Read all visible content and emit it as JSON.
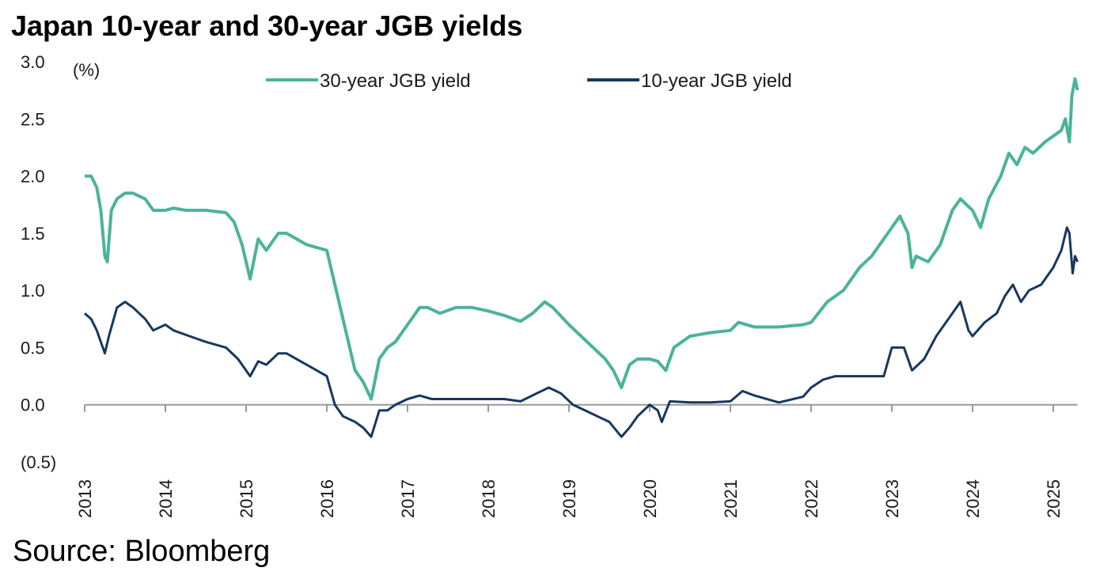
{
  "title": "Japan 10-year and 30-year JGB yields",
  "source": "Source: Bloomberg",
  "chart_data": {
    "type": "line",
    "title": "Japan 10-year and 30-year JGB yields",
    "unit_label": "(%)",
    "xlabel": "",
    "ylabel": "",
    "ylim": [
      -0.5,
      3.0
    ],
    "xlim": [
      2013.0,
      2025.3
    ],
    "y_ticks": [
      3.0,
      2.5,
      2.0,
      1.5,
      1.0,
      0.5,
      0.0,
      -0.5
    ],
    "y_tick_labels": [
      "3.0",
      "2.5",
      "2.0",
      "1.5",
      "1.0",
      "0.5",
      "0.0",
      "(0.5)"
    ],
    "x_tick_labels": [
      "2013",
      "2014",
      "2015",
      "2016",
      "2017",
      "2018",
      "2019",
      "2020",
      "2021",
      "2022",
      "2023",
      "2024",
      "2025"
    ],
    "grid": false,
    "legend_position": "top",
    "series": [
      {
        "name": "30-year JGB yield",
        "color": "#4bb39b",
        "points": [
          [
            2013.0,
            2.0
          ],
          [
            2013.08,
            2.0
          ],
          [
            2013.15,
            1.9
          ],
          [
            2013.2,
            1.7
          ],
          [
            2013.25,
            1.3
          ],
          [
            2013.28,
            1.25
          ],
          [
            2013.33,
            1.7
          ],
          [
            2013.4,
            1.8
          ],
          [
            2013.5,
            1.85
          ],
          [
            2013.6,
            1.85
          ],
          [
            2013.75,
            1.8
          ],
          [
            2013.85,
            1.7
          ],
          [
            2014.0,
            1.7
          ],
          [
            2014.1,
            1.72
          ],
          [
            2014.25,
            1.7
          ],
          [
            2014.5,
            1.7
          ],
          [
            2014.75,
            1.68
          ],
          [
            2014.85,
            1.6
          ],
          [
            2014.95,
            1.4
          ],
          [
            2015.05,
            1.1
          ],
          [
            2015.15,
            1.45
          ],
          [
            2015.25,
            1.35
          ],
          [
            2015.4,
            1.5
          ],
          [
            2015.5,
            1.5
          ],
          [
            2015.75,
            1.4
          ],
          [
            2016.0,
            1.35
          ],
          [
            2016.05,
            1.2
          ],
          [
            2016.15,
            0.9
          ],
          [
            2016.25,
            0.6
          ],
          [
            2016.35,
            0.3
          ],
          [
            2016.45,
            0.2
          ],
          [
            2016.55,
            0.05
          ],
          [
            2016.65,
            0.4
          ],
          [
            2016.75,
            0.5
          ],
          [
            2016.85,
            0.55
          ],
          [
            2017.0,
            0.7
          ],
          [
            2017.15,
            0.85
          ],
          [
            2017.25,
            0.85
          ],
          [
            2017.4,
            0.8
          ],
          [
            2017.6,
            0.85
          ],
          [
            2017.8,
            0.85
          ],
          [
            2018.0,
            0.82
          ],
          [
            2018.2,
            0.78
          ],
          [
            2018.4,
            0.73
          ],
          [
            2018.55,
            0.8
          ],
          [
            2018.7,
            0.9
          ],
          [
            2018.8,
            0.85
          ],
          [
            2019.0,
            0.7
          ],
          [
            2019.15,
            0.6
          ],
          [
            2019.3,
            0.5
          ],
          [
            2019.45,
            0.4
          ],
          [
            2019.55,
            0.3
          ],
          [
            2019.65,
            0.15
          ],
          [
            2019.75,
            0.35
          ],
          [
            2019.85,
            0.4
          ],
          [
            2020.0,
            0.4
          ],
          [
            2020.1,
            0.38
          ],
          [
            2020.2,
            0.3
          ],
          [
            2020.3,
            0.5
          ],
          [
            2020.5,
            0.6
          ],
          [
            2020.75,
            0.63
          ],
          [
            2021.0,
            0.65
          ],
          [
            2021.1,
            0.72
          ],
          [
            2021.3,
            0.68
          ],
          [
            2021.6,
            0.68
          ],
          [
            2021.9,
            0.7
          ],
          [
            2022.0,
            0.72
          ],
          [
            2022.2,
            0.9
          ],
          [
            2022.4,
            1.0
          ],
          [
            2022.6,
            1.2
          ],
          [
            2022.75,
            1.3
          ],
          [
            2022.9,
            1.45
          ],
          [
            2023.0,
            1.55
          ],
          [
            2023.1,
            1.65
          ],
          [
            2023.2,
            1.5
          ],
          [
            2023.25,
            1.2
          ],
          [
            2023.3,
            1.3
          ],
          [
            2023.45,
            1.25
          ],
          [
            2023.6,
            1.4
          ],
          [
            2023.75,
            1.7
          ],
          [
            2023.85,
            1.8
          ],
          [
            2024.0,
            1.7
          ],
          [
            2024.1,
            1.55
          ],
          [
            2024.2,
            1.8
          ],
          [
            2024.35,
            2.0
          ],
          [
            2024.45,
            2.2
          ],
          [
            2024.55,
            2.1
          ],
          [
            2024.65,
            2.25
          ],
          [
            2024.75,
            2.2
          ],
          [
            2024.9,
            2.3
          ],
          [
            2025.0,
            2.35
          ],
          [
            2025.1,
            2.4
          ],
          [
            2025.15,
            2.5
          ],
          [
            2025.2,
            2.3
          ],
          [
            2025.23,
            2.7
          ],
          [
            2025.27,
            2.85
          ],
          [
            2025.3,
            2.75
          ]
        ]
      },
      {
        "name": "10-year JGB yield",
        "color": "#17375e",
        "points": [
          [
            2013.0,
            0.8
          ],
          [
            2013.08,
            0.75
          ],
          [
            2013.15,
            0.65
          ],
          [
            2013.2,
            0.55
          ],
          [
            2013.25,
            0.45
          ],
          [
            2013.3,
            0.6
          ],
          [
            2013.4,
            0.85
          ],
          [
            2013.5,
            0.9
          ],
          [
            2013.6,
            0.85
          ],
          [
            2013.75,
            0.75
          ],
          [
            2013.85,
            0.65
          ],
          [
            2014.0,
            0.7
          ],
          [
            2014.1,
            0.65
          ],
          [
            2014.3,
            0.6
          ],
          [
            2014.5,
            0.55
          ],
          [
            2014.75,
            0.5
          ],
          [
            2014.9,
            0.4
          ],
          [
            2015.05,
            0.25
          ],
          [
            2015.15,
            0.38
          ],
          [
            2015.25,
            0.35
          ],
          [
            2015.4,
            0.45
          ],
          [
            2015.5,
            0.45
          ],
          [
            2015.75,
            0.35
          ],
          [
            2016.0,
            0.25
          ],
          [
            2016.1,
            0.0
          ],
          [
            2016.2,
            -0.1
          ],
          [
            2016.35,
            -0.15
          ],
          [
            2016.45,
            -0.2
          ],
          [
            2016.55,
            -0.28
          ],
          [
            2016.65,
            -0.05
          ],
          [
            2016.75,
            -0.05
          ],
          [
            2016.85,
            0.0
          ],
          [
            2017.0,
            0.05
          ],
          [
            2017.15,
            0.08
          ],
          [
            2017.3,
            0.05
          ],
          [
            2017.5,
            0.05
          ],
          [
            2017.75,
            0.05
          ],
          [
            2018.0,
            0.05
          ],
          [
            2018.2,
            0.05
          ],
          [
            2018.4,
            0.03
          ],
          [
            2018.6,
            0.1
          ],
          [
            2018.75,
            0.15
          ],
          [
            2018.9,
            0.1
          ],
          [
            2019.05,
            0.0
          ],
          [
            2019.2,
            -0.05
          ],
          [
            2019.35,
            -0.1
          ],
          [
            2019.5,
            -0.15
          ],
          [
            2019.65,
            -0.28
          ],
          [
            2019.75,
            -0.2
          ],
          [
            2019.85,
            -0.1
          ],
          [
            2020.0,
            0.0
          ],
          [
            2020.1,
            -0.05
          ],
          [
            2020.15,
            -0.15
          ],
          [
            2020.25,
            0.03
          ],
          [
            2020.5,
            0.02
          ],
          [
            2020.75,
            0.02
          ],
          [
            2021.0,
            0.03
          ],
          [
            2021.15,
            0.12
          ],
          [
            2021.3,
            0.08
          ],
          [
            2021.6,
            0.02
          ],
          [
            2021.9,
            0.07
          ],
          [
            2022.0,
            0.15
          ],
          [
            2022.15,
            0.22
          ],
          [
            2022.3,
            0.25
          ],
          [
            2022.5,
            0.25
          ],
          [
            2022.75,
            0.25
          ],
          [
            2022.9,
            0.25
          ],
          [
            2023.0,
            0.5
          ],
          [
            2023.15,
            0.5
          ],
          [
            2023.25,
            0.3
          ],
          [
            2023.4,
            0.4
          ],
          [
            2023.55,
            0.6
          ],
          [
            2023.75,
            0.8
          ],
          [
            2023.85,
            0.9
          ],
          [
            2023.95,
            0.65
          ],
          [
            2024.0,
            0.6
          ],
          [
            2024.15,
            0.72
          ],
          [
            2024.3,
            0.8
          ],
          [
            2024.4,
            0.95
          ],
          [
            2024.5,
            1.05
          ],
          [
            2024.6,
            0.9
          ],
          [
            2024.7,
            1.0
          ],
          [
            2024.85,
            1.05
          ],
          [
            2025.0,
            1.2
          ],
          [
            2025.1,
            1.35
          ],
          [
            2025.17,
            1.55
          ],
          [
            2025.2,
            1.5
          ],
          [
            2025.24,
            1.15
          ],
          [
            2025.27,
            1.3
          ],
          [
            2025.3,
            1.25
          ]
        ]
      }
    ]
  }
}
